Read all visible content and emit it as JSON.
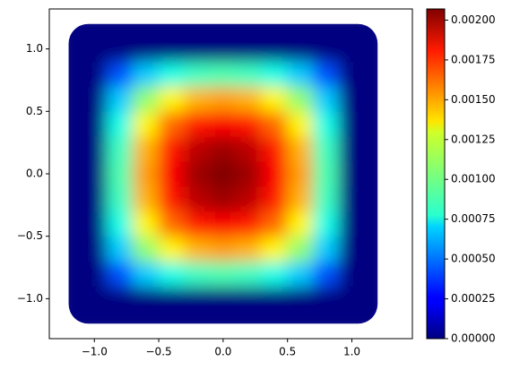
{
  "chart_data": {
    "type": "heatmap",
    "colormap": "jet",
    "x": [
      -1.2,
      -1.0,
      -0.8,
      -0.6,
      -0.4,
      -0.2,
      0.0,
      0.2,
      0.4,
      0.6,
      0.8,
      1.0,
      1.2
    ],
    "y": [
      -1.2,
      -1.0,
      -0.8,
      -0.6,
      -0.4,
      -0.2,
      0.0,
      0.2,
      0.4,
      0.6,
      0.8,
      1.0,
      1.2
    ],
    "z": [
      [
        0,
        0,
        0,
        0,
        0,
        0,
        0,
        0,
        0,
        0,
        0,
        0,
        0
      ],
      [
        0,
        0,
        0,
        0,
        0,
        0,
        0,
        0,
        0,
        0,
        0,
        0,
        0
      ],
      [
        0,
        0,
        0.00042,
        0.00067,
        0.00082,
        0.0009,
        0.00093,
        0.0009,
        0.00082,
        0.00067,
        0.00042,
        0,
        0
      ],
      [
        0,
        0,
        0.00067,
        0.00107,
        0.00131,
        0.00145,
        0.00149,
        0.00145,
        0.00131,
        0.00107,
        0.00067,
        0,
        0
      ],
      [
        0,
        0,
        0.00082,
        0.00131,
        0.0016,
        0.00177,
        0.00182,
        0.00177,
        0.0016,
        0.00131,
        0.00082,
        0,
        0
      ],
      [
        0,
        0,
        0.0009,
        0.00145,
        0.00177,
        0.00195,
        0.00201,
        0.00195,
        0.00177,
        0.00145,
        0.0009,
        0,
        0
      ],
      [
        0,
        0,
        0.00093,
        0.00149,
        0.00182,
        0.00201,
        0.00207,
        0.00201,
        0.00182,
        0.00149,
        0.00093,
        0,
        0
      ],
      [
        0,
        0,
        0.0009,
        0.00145,
        0.00177,
        0.00195,
        0.00201,
        0.00195,
        0.00177,
        0.00145,
        0.0009,
        0,
        0
      ],
      [
        0,
        0,
        0.00082,
        0.00131,
        0.0016,
        0.00177,
        0.00182,
        0.00177,
        0.0016,
        0.00131,
        0.00082,
        0,
        0
      ],
      [
        0,
        0,
        0.00067,
        0.00107,
        0.00131,
        0.00145,
        0.00149,
        0.00145,
        0.00131,
        0.00107,
        0.00067,
        0,
        0
      ],
      [
        0,
        0,
        0.00042,
        0.00067,
        0.00082,
        0.0009,
        0.00093,
        0.0009,
        0.00082,
        0.00067,
        0.00042,
        0,
        0
      ],
      [
        0,
        0,
        0,
        0,
        0,
        0,
        0,
        0,
        0,
        0,
        0,
        0,
        0
      ],
      [
        0,
        0,
        0,
        0,
        0,
        0,
        0,
        0,
        0,
        0,
        0,
        0,
        0
      ]
    ],
    "xlim": [
      -1.35,
      1.47
    ],
    "ylim": [
      -1.32,
      1.32
    ],
    "xticks": [
      {
        "value": -1.0,
        "label": "−1.0"
      },
      {
        "value": -0.5,
        "label": "−0.5"
      },
      {
        "value": 0.0,
        "label": "0.0"
      },
      {
        "value": 0.5,
        "label": "0.5"
      },
      {
        "value": 1.0,
        "label": "1.0"
      }
    ],
    "yticks": [
      {
        "value": -1.0,
        "label": "−1.0"
      },
      {
        "value": -0.5,
        "label": "−0.5"
      },
      {
        "value": 0.0,
        "label": "0.0"
      },
      {
        "value": 0.5,
        "label": "0.5"
      },
      {
        "value": 1.0,
        "label": "1.0"
      }
    ],
    "clim": [
      0,
      0.00207
    ],
    "cticks": [
      {
        "value": 0,
        "label": "0.00000"
      },
      {
        "value": 0.00025,
        "label": "0.00025"
      },
      {
        "value": 0.0005,
        "label": "0.00050"
      },
      {
        "value": 0.00075,
        "label": "0.00075"
      },
      {
        "value": 0.001,
        "label": "0.00100"
      },
      {
        "value": 0.00125,
        "label": "0.00125"
      },
      {
        "value": 0.0015,
        "label": "0.00150"
      },
      {
        "value": 0.00175,
        "label": "0.00175"
      },
      {
        "value": 0.002,
        "label": "0.00200"
      }
    ]
  }
}
